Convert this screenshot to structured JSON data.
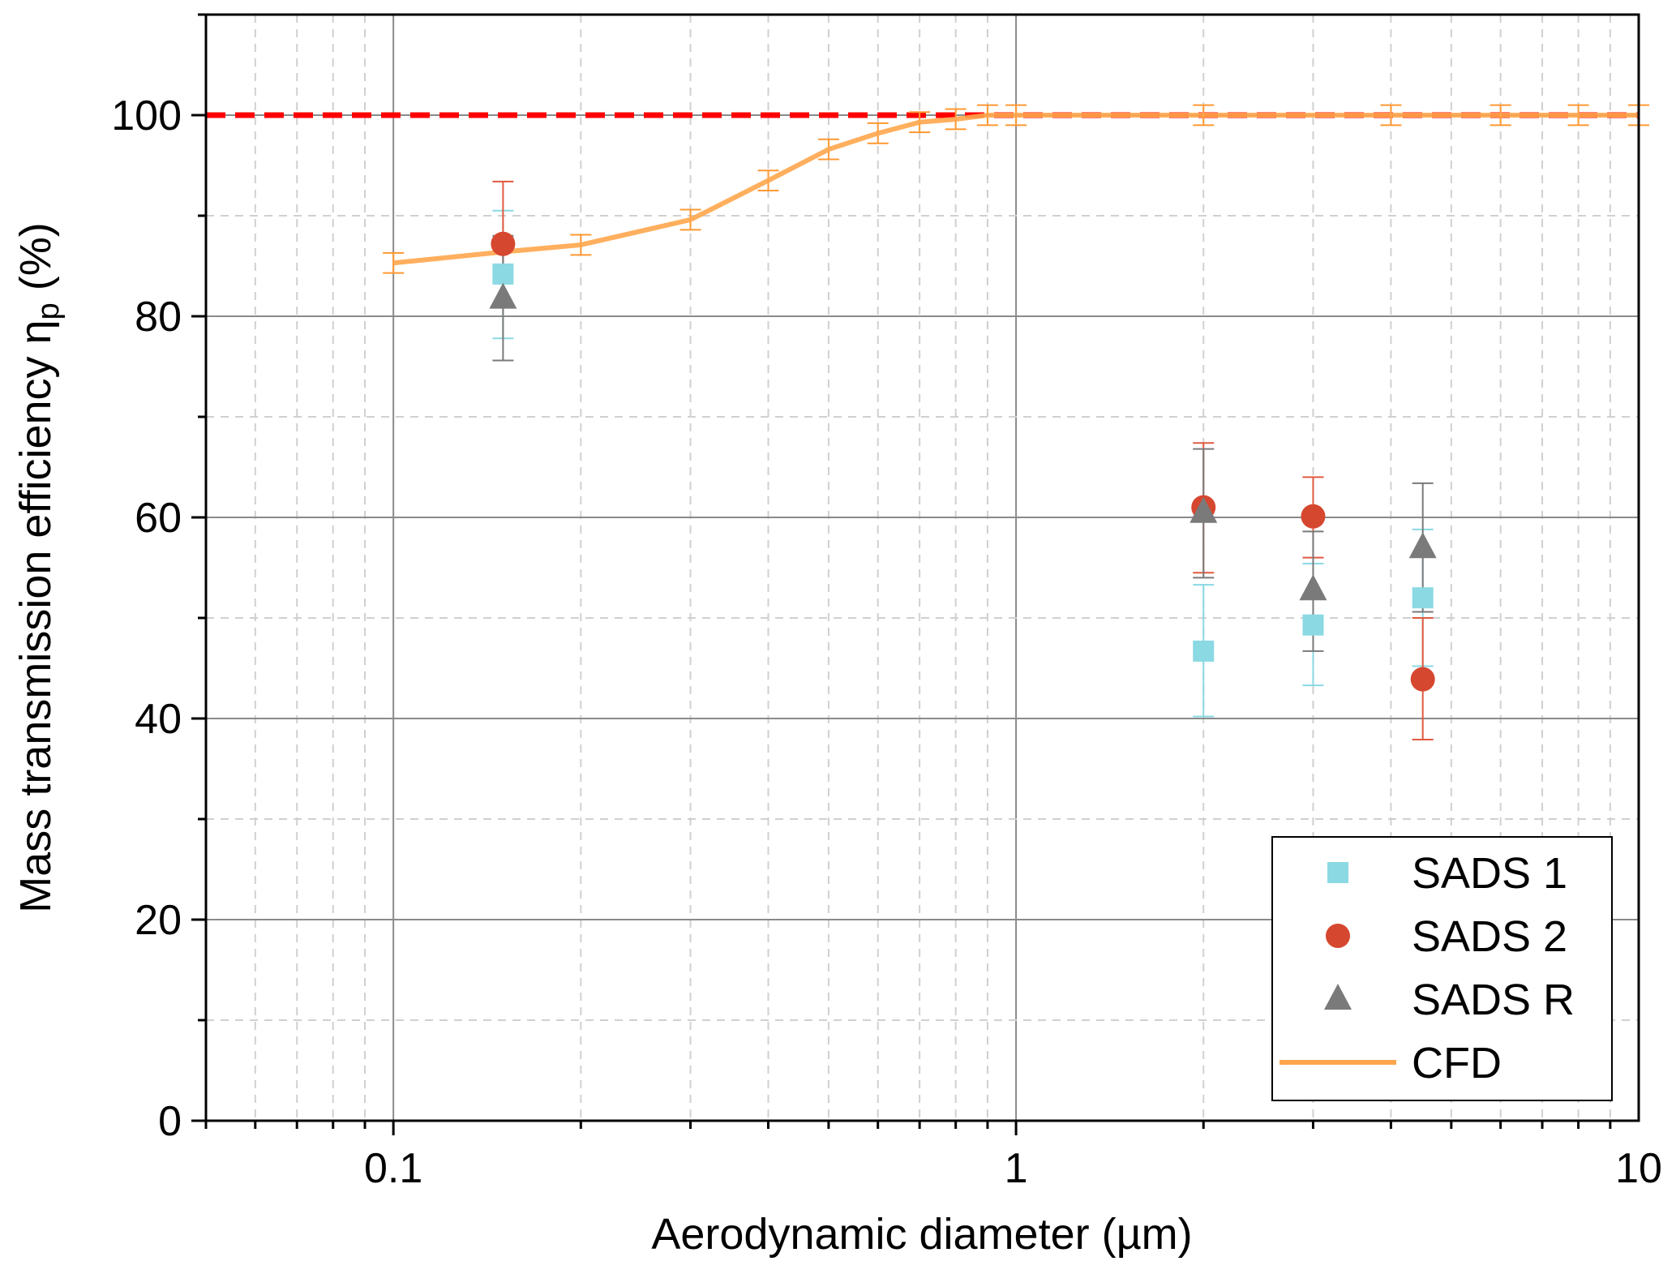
{
  "chart_data": {
    "type": "scatter",
    "xlabel": "Aerodynamic diameter (µm)",
    "ylabel": "Mass transmission efficiency η",
    "ylabel_sub": "p",
    "ylabel_unit": " (%)",
    "xscale": "log",
    "xlim": [
      0.05,
      10
    ],
    "ylim": [
      0,
      110
    ],
    "xticks": [
      0.1,
      1,
      10
    ],
    "xtick_labels": [
      "0.1",
      "1",
      "10"
    ],
    "yticks": [
      0,
      20,
      40,
      60,
      80,
      100
    ],
    "ytick_labels": [
      "0",
      "20",
      "40",
      "60",
      "80",
      "100"
    ],
    "grid": true,
    "legend_position": "bottom-right",
    "reference_line": {
      "y": 100,
      "color": "#ff0000",
      "style": "dashed"
    },
    "series": [
      {
        "name": "SADS 1",
        "marker": "square",
        "color": "#8ad9e3",
        "x": [
          0.15,
          2,
          3,
          4.5
        ],
        "y": [
          84.2,
          46.7,
          49.3,
          52.0
        ],
        "err_low": [
          77.8,
          40.2,
          43.3,
          45.2
        ],
        "err_high": [
          90.5,
          53.3,
          55.4,
          58.8
        ]
      },
      {
        "name": "SADS 2",
        "marker": "circle",
        "color": "#d5472f",
        "x": [
          0.15,
          2,
          3,
          4.5
        ],
        "y": [
          87.2,
          61.0,
          60.1,
          43.9
        ],
        "err_low": [
          81.0,
          54.5,
          56.0,
          37.9
        ],
        "err_high": [
          93.4,
          67.4,
          64.0,
          50.0
        ]
      },
      {
        "name": "SADS R",
        "marker": "triangle",
        "color": "#7a7a7a",
        "x": [
          0.15,
          2,
          3,
          4.5
        ],
        "y": [
          81.8,
          60.5,
          52.8,
          57.0
        ],
        "err_low": [
          75.6,
          54.0,
          46.7,
          50.6
        ],
        "err_high": [
          88.0,
          66.8,
          58.6,
          63.4
        ]
      },
      {
        "name": "CFD",
        "marker": "line",
        "color": "#ffa64d",
        "x": [
          0.1,
          0.15,
          0.2,
          0.3,
          0.4,
          0.5,
          0.6,
          0.7,
          0.8,
          0.9,
          1,
          2,
          3,
          4,
          5,
          6,
          8,
          10
        ],
        "y": [
          85.3,
          86.4,
          87.1,
          89.6,
          93.5,
          96.6,
          98.2,
          99.3,
          99.6,
          100,
          100,
          100,
          100,
          100,
          100,
          100,
          100,
          100
        ],
        "err_x": [
          0.1,
          0.2,
          0.3,
          0.4,
          0.5,
          0.6,
          0.7,
          0.8,
          0.9,
          1,
          2,
          4,
          6,
          8,
          10
        ],
        "err_y": [
          85.3,
          87.1,
          89.6,
          93.5,
          96.6,
          98.2,
          99.3,
          99.6,
          100,
          100,
          100,
          100,
          100,
          100,
          100
        ],
        "err": 1.0
      }
    ]
  }
}
